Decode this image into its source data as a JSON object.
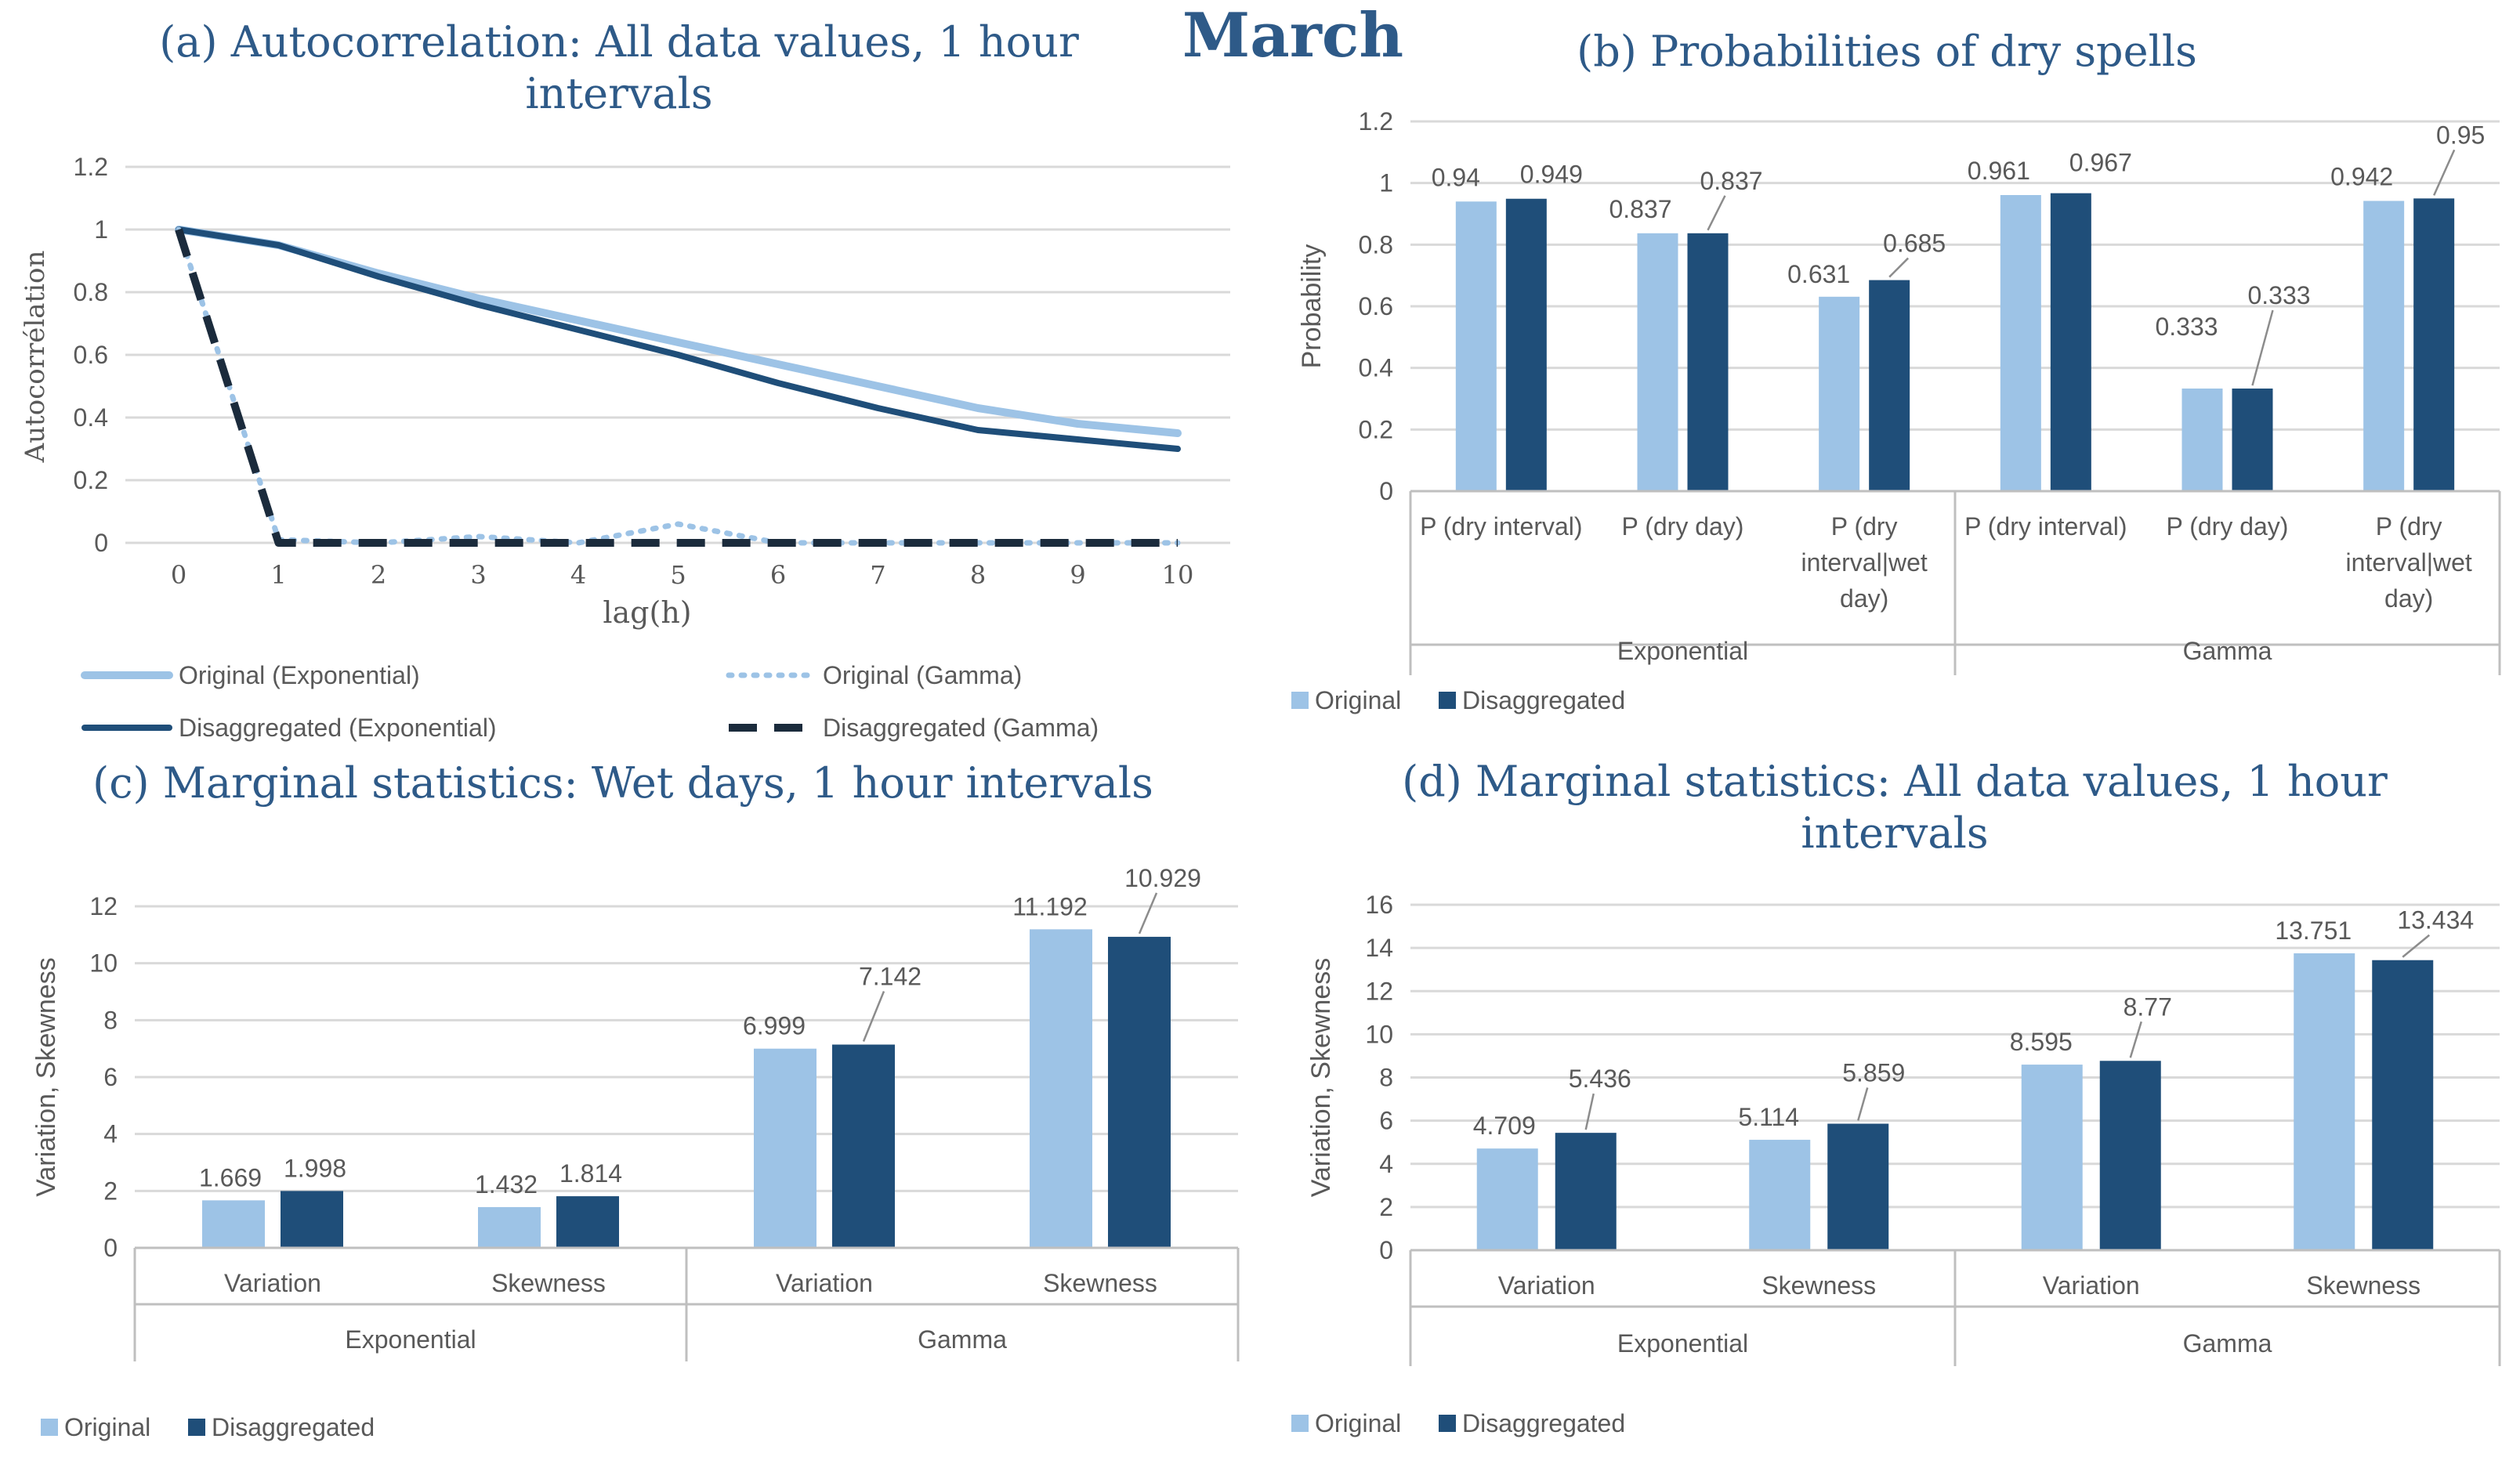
{
  "page_title": "March",
  "colors": {
    "original": "#9DC3E6",
    "disaggregated": "#1F4E79",
    "title": "#2E5A88",
    "text": "#595959",
    "grid": "#D9D9D9",
    "gamma_dash": "#1B2B3C"
  },
  "chart_data": [
    {
      "id": "a",
      "type": "line",
      "title_lines": [
        "(a) Autocorrelation: All data values, 1 hour",
        "intervals"
      ],
      "xlabel": "lag(h)",
      "ylabel": "Autocorrélation",
      "x": [
        0,
        1,
        2,
        3,
        4,
        5,
        6,
        7,
        8,
        9,
        10
      ],
      "ylim": [
        0,
        1.2
      ],
      "yticks": [
        "0",
        "0.2",
        "0.4",
        "0.6",
        "0.8",
        "1",
        "1.2"
      ],
      "series": [
        {
          "name": "Original (Exponential)",
          "values": [
            1,
            0.95,
            0.86,
            0.78,
            0.71,
            0.64,
            0.57,
            0.5,
            0.43,
            0.38,
            0.35
          ]
        },
        {
          "name": "Original (Gamma)",
          "values": [
            1,
            0.01,
            0,
            0.02,
            0,
            0.06,
            0,
            0,
            0,
            0,
            0
          ]
        },
        {
          "name": "Disaggregated (Exponential)",
          "values": [
            1,
            0.95,
            0.85,
            0.76,
            0.68,
            0.6,
            0.51,
            0.43,
            0.36,
            0.33,
            0.3
          ]
        },
        {
          "name": "Disaggregated (Gamma)",
          "values": [
            1,
            0,
            0,
            0,
            0,
            0,
            0,
            0,
            0,
            0,
            0
          ]
        }
      ]
    },
    {
      "id": "b",
      "type": "bar",
      "title_lines": [
        "(b) Probabilities of dry spells"
      ],
      "ylabel": "Probability",
      "ylim": [
        0,
        1.2
      ],
      "yticks": [
        "0",
        "0.2",
        "0.4",
        "0.6",
        "0.8",
        "1",
        "1.2"
      ],
      "categories": [
        [
          "P (dry interval)"
        ],
        [
          "P (dry day)"
        ],
        [
          "P (dry",
          "interval|wet",
          "day)"
        ],
        [
          "P (dry interval)"
        ],
        [
          "P (dry day)"
        ],
        [
          "P (dry",
          "interval|wet",
          "day)"
        ]
      ],
      "groups": [
        "Exponential",
        "Gamma"
      ],
      "series": [
        {
          "name": "Original",
          "values": [
            0.94,
            0.837,
            0.631,
            0.961,
            0.333,
            0.942
          ]
        },
        {
          "name": "Disaggregated",
          "values": [
            0.949,
            0.837,
            0.685,
            0.967,
            0.333,
            0.95
          ]
        }
      ],
      "value_labels": [
        [
          "0.94",
          "0.837",
          "0.631",
          "0.961",
          "0.333",
          "0.942"
        ],
        [
          "0.949",
          "0.837",
          "0.685",
          "0.967",
          "0.333",
          "0.95"
        ]
      ],
      "legend": [
        "Original",
        "Disaggregated"
      ]
    },
    {
      "id": "c",
      "type": "bar",
      "title_lines": [
        "(c) Marginal statistics: Wet days, 1 hour intervals"
      ],
      "ylabel": "Variation, Skewness",
      "ylim": [
        0,
        12
      ],
      "yticks": [
        "0",
        "2",
        "4",
        "6",
        "8",
        "10",
        "12"
      ],
      "categories": [
        [
          "Variation"
        ],
        [
          "Skewness"
        ],
        [
          "Variation"
        ],
        [
          "Skewness"
        ]
      ],
      "groups": [
        "Exponential",
        "Gamma"
      ],
      "series": [
        {
          "name": "Original",
          "values": [
            1.669,
            1.432,
            6.999,
            11.192
          ]
        },
        {
          "name": "Disaggregated",
          "values": [
            1.998,
            1.814,
            7.142,
            10.929
          ]
        }
      ],
      "value_labels": [
        [
          "1.669",
          "1.432",
          "6.999",
          "11.192"
        ],
        [
          "1.998",
          "1.814",
          "7.142",
          "10.929"
        ]
      ],
      "legend": [
        "Original",
        "Disaggregated"
      ]
    },
    {
      "id": "d",
      "type": "bar",
      "title_lines": [
        "(d) Marginal statistics: All data values, 1 hour",
        "intervals"
      ],
      "ylabel": "Variation, Skewness",
      "ylim": [
        0,
        16
      ],
      "yticks": [
        "0",
        "2",
        "4",
        "6",
        "8",
        "10",
        "12",
        "14",
        "16"
      ],
      "categories": [
        [
          "Variation"
        ],
        [
          "Skewness"
        ],
        [
          "Variation"
        ],
        [
          "Skewness"
        ]
      ],
      "groups": [
        "Exponential",
        "Gamma"
      ],
      "series": [
        {
          "name": "Original",
          "values": [
            4.709,
            5.114,
            8.595,
            13.751
          ]
        },
        {
          "name": "Disaggregated",
          "values": [
            5.436,
            5.859,
            8.77,
            13.434
          ]
        }
      ],
      "value_labels": [
        [
          "4.709",
          "5.114",
          "8.595",
          "13.751"
        ],
        [
          "5.436",
          "5.859",
          "8.77",
          "13.434"
        ]
      ],
      "legend": [
        "Original",
        "Disaggregated"
      ]
    }
  ]
}
